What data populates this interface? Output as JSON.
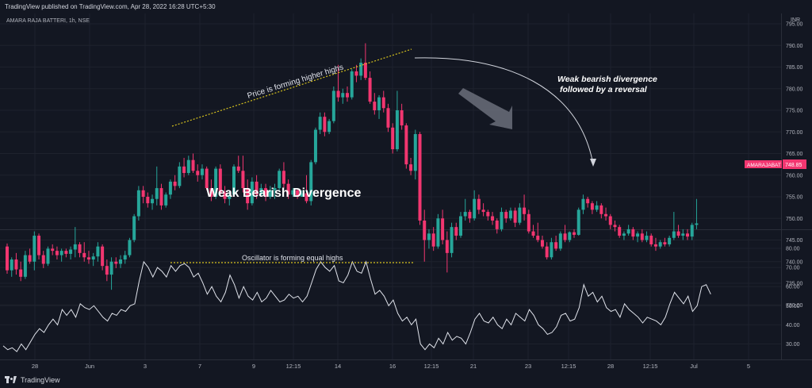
{
  "header": {
    "published": "TradingView published on TradingView.com, Apr 28, 2022 16:28 UTC+5:30"
  },
  "footer": {
    "brand": "TradingView"
  },
  "chart_data": [
    {
      "type": "candlestick",
      "symbol_label": "AMARA RAJA BATTERI, 1h, NSE",
      "currency": "INR",
      "price_badge": {
        "ticker": "AMARAJABAT",
        "price": "748.85"
      },
      "ylim": [
        727,
        797
      ],
      "y_ticks": [
        "795.00",
        "790.00",
        "785.00",
        "780.00",
        "775.00",
        "770.00",
        "765.00",
        "760.00",
        "755.00",
        "750.00",
        "745.00",
        "740.00",
        "735.00",
        "730.00"
      ],
      "annotations": {
        "title": "Weak Bearish Divergence",
        "price_note": "Price is forming higher highs",
        "divergence_note_line1": "Weak bearish divergence",
        "divergence_note_line2": "followed by a reversal"
      },
      "colors": {
        "up": "#26a69a",
        "down": "#f23670",
        "trend": "#d6c21e",
        "background": "#131722"
      },
      "candles": [
        [
          743.5,
          744.2,
          737.2,
          738.0
        ],
        [
          738.0,
          741.0,
          736.5,
          740.5
        ],
        [
          740.5,
          742.0,
          737.0,
          738.2
        ],
        [
          738.2,
          740.0,
          735.5,
          736.5
        ],
        [
          736.5,
          742.5,
          736.0,
          741.5
        ],
        [
          741.5,
          743.0,
          739.5,
          740.0
        ],
        [
          740.0,
          747.0,
          738.0,
          746.0
        ],
        [
          746.0,
          746.5,
          740.5,
          741.5
        ],
        [
          741.5,
          742.5,
          738.5,
          739.5
        ],
        [
          739.5,
          743.5,
          739.0,
          743.0
        ],
        [
          743.0,
          744.0,
          741.5,
          742.5
        ],
        [
          742.5,
          743.5,
          740.5,
          741.5
        ],
        [
          741.5,
          743.0,
          740.0,
          742.5
        ],
        [
          742.5,
          743.0,
          741.0,
          741.8
        ],
        [
          741.8,
          743.5,
          740.5,
          742.8
        ],
        [
          742.8,
          748.0,
          741.0,
          744.0
        ],
        [
          744.0,
          744.5,
          741.0,
          742.0
        ],
        [
          742.0,
          744.5,
          740.0,
          741.0
        ],
        [
          741.0,
          742.5,
          739.5,
          740.5
        ],
        [
          740.5,
          742.0,
          739.0,
          741.2
        ],
        [
          741.2,
          744.5,
          740.0,
          743.5
        ],
        [
          743.5,
          744.0,
          738.0,
          739.0
        ],
        [
          739.0,
          740.5,
          735.5,
          737.0
        ],
        [
          737.0,
          741.0,
          733.5,
          740.0
        ],
        [
          740.0,
          741.0,
          738.5,
          739.5
        ],
        [
          739.5,
          741.5,
          738.5,
          740.5
        ],
        [
          740.5,
          742.5,
          739.5,
          741.5
        ],
        [
          741.5,
          745.5,
          741.0,
          745.0
        ],
        [
          745.0,
          751.0,
          744.5,
          750.5
        ],
        [
          750.5,
          757.5,
          749.5,
          756.5
        ],
        [
          756.5,
          757.5,
          753.5,
          755.0
        ],
        [
          755.0,
          756.0,
          752.5,
          753.5
        ],
        [
          753.5,
          755.5,
          752.0,
          754.5
        ],
        [
          754.5,
          762.0,
          753.0,
          757.0
        ],
        [
          757.0,
          758.0,
          752.0,
          753.0
        ],
        [
          753.0,
          756.0,
          752.5,
          755.5
        ],
        [
          755.5,
          759.0,
          754.5,
          758.5
        ],
        [
          758.5,
          760.0,
          756.5,
          757.5
        ],
        [
          757.5,
          763.0,
          757.0,
          762.0
        ],
        [
          762.0,
          764.0,
          759.5,
          760.5
        ],
        [
          760.5,
          764.5,
          760.0,
          763.5
        ],
        [
          763.5,
          765.0,
          760.5,
          761.0
        ],
        [
          761.0,
          762.5,
          758.5,
          760.0
        ],
        [
          760.0,
          762.5,
          759.0,
          761.5
        ],
        [
          761.5,
          762.0,
          756.5,
          757.0
        ],
        [
          757.0,
          759.0,
          754.0,
          755.0
        ],
        [
          755.0,
          762.0,
          754.5,
          761.5
        ],
        [
          761.5,
          762.5,
          755.0,
          756.0
        ],
        [
          756.0,
          757.5,
          753.5,
          754.5
        ],
        [
          754.5,
          756.5,
          753.0,
          755.5
        ],
        [
          755.5,
          762.5,
          755.0,
          762.0
        ],
        [
          762.0,
          764.5,
          760.5,
          761.0
        ],
        [
          761.0,
          764.5,
          756.0,
          757.0
        ],
        [
          757.0,
          759.0,
          752.0,
          753.5
        ],
        [
          753.5,
          759.5,
          753.0,
          758.5
        ],
        [
          758.5,
          760.0,
          754.5,
          755.5
        ],
        [
          755.5,
          758.0,
          755.0,
          757.0
        ],
        [
          757.0,
          758.0,
          754.0,
          755.0
        ],
        [
          755.0,
          757.5,
          754.5,
          756.5
        ],
        [
          756.5,
          758.0,
          754.5,
          757.0
        ],
        [
          757.0,
          761.5,
          756.5,
          761.0
        ],
        [
          761.0,
          763.0,
          757.0,
          758.0
        ],
        [
          758.0,
          759.0,
          754.5,
          755.5
        ],
        [
          755.5,
          757.0,
          755.0,
          756.5
        ],
        [
          756.5,
          757.0,
          754.5,
          755.0
        ],
        [
          755.0,
          756.5,
          755.0,
          755.8
        ],
        [
          755.8,
          760.0,
          753.5,
          754.0
        ],
        [
          754.0,
          763.5,
          753.0,
          763.0
        ],
        [
          763.0,
          771.0,
          762.5,
          770.5
        ],
        [
          770.5,
          774.5,
          769.5,
          773.5
        ],
        [
          773.5,
          774.5,
          769.0,
          770.0
        ],
        [
          770.0,
          773.0,
          769.5,
          772.5
        ],
        [
          772.5,
          780.5,
          772.0,
          779.5
        ],
        [
          779.5,
          785.5,
          777.0,
          778.0
        ],
        [
          778.0,
          780.0,
          776.5,
          779.0
        ],
        [
          779.0,
          780.5,
          777.0,
          778.0
        ],
        [
          778.0,
          784.5,
          777.5,
          784.0
        ],
        [
          784.0,
          785.5,
          781.5,
          783.0
        ],
        [
          783.0,
          787.0,
          782.0,
          786.0
        ],
        [
          786.0,
          790.5,
          782.0,
          782.5
        ],
        [
          782.5,
          784.0,
          776.5,
          777.0
        ],
        [
          777.0,
          779.0,
          774.0,
          775.0
        ],
        [
          775.0,
          778.5,
          773.0,
          778.0
        ],
        [
          778.0,
          779.5,
          774.5,
          775.5
        ],
        [
          775.5,
          776.5,
          770.0,
          771.0
        ],
        [
          771.0,
          772.0,
          765.0,
          766.0
        ],
        [
          766.0,
          779.5,
          765.5,
          775.0
        ],
        [
          775.0,
          776.5,
          770.5,
          771.5
        ],
        [
          771.5,
          772.0,
          761.5,
          762.5
        ],
        [
          762.5,
          764.0,
          760.0,
          761.0
        ],
        [
          761.0,
          770.5,
          759.0,
          769.5
        ],
        [
          769.5,
          770.0,
          748.5,
          749.5
        ],
        [
          749.5,
          752.0,
          740.0,
          745.0
        ],
        [
          745.0,
          747.5,
          743.0,
          746.5
        ],
        [
          746.5,
          748.0,
          742.5,
          743.5
        ],
        [
          743.5,
          751.0,
          743.0,
          750.0
        ],
        [
          750.0,
          752.0,
          744.0,
          745.0
        ],
        [
          745.0,
          747.0,
          737.5,
          742.0
        ],
        [
          742.0,
          749.0,
          741.0,
          748.0
        ],
        [
          748.0,
          749.0,
          745.0,
          746.0
        ],
        [
          746.0,
          751.5,
          745.5,
          750.5
        ],
        [
          750.5,
          754.5,
          749.5,
          751.5
        ],
        [
          751.5,
          752.0,
          749.0,
          750.0
        ],
        [
          750.0,
          756.5,
          749.5,
          754.5
        ],
        [
          754.5,
          755.5,
          751.0,
          752.0
        ],
        [
          752.0,
          753.5,
          750.5,
          751.5
        ],
        [
          751.5,
          752.0,
          749.5,
          750.5
        ],
        [
          750.5,
          751.5,
          748.5,
          749.5
        ],
        [
          749.5,
          750.0,
          746.5,
          747.5
        ],
        [
          747.5,
          752.5,
          747.0,
          751.5
        ],
        [
          751.5,
          752.0,
          749.0,
          750.0
        ],
        [
          750.0,
          752.5,
          749.5,
          751.8
        ],
        [
          751.8,
          752.5,
          748.0,
          749.0
        ],
        [
          749.0,
          753.5,
          748.5,
          752.5
        ],
        [
          752.5,
          755.5,
          749.5,
          751.0
        ],
        [
          751.0,
          752.0,
          746.5,
          747.0
        ],
        [
          747.0,
          748.5,
          745.5,
          746.0
        ],
        [
          746.0,
          749.0,
          744.5,
          745.0
        ],
        [
          745.0,
          746.0,
          743.0,
          743.5
        ],
        [
          743.5,
          744.5,
          740.5,
          741.0
        ],
        [
          741.0,
          745.5,
          740.5,
          744.5
        ],
        [
          744.5,
          746.0,
          742.5,
          743.0
        ],
        [
          743.0,
          747.0,
          742.5,
          746.5
        ],
        [
          746.5,
          748.5,
          744.5,
          745.0
        ],
        [
          745.0,
          747.0,
          744.5,
          746.8
        ],
        [
          746.8,
          747.5,
          745.5,
          746.2
        ],
        [
          746.2,
          752.5,
          746.0,
          752.0
        ],
        [
          752.0,
          755.5,
          751.0,
          754.5
        ],
        [
          754.5,
          755.0,
          752.5,
          753.5
        ],
        [
          753.5,
          754.0,
          751.0,
          752.0
        ],
        [
          752.0,
          754.0,
          751.5,
          753.0
        ],
        [
          753.0,
          753.5,
          750.0,
          751.0
        ],
        [
          751.0,
          752.5,
          749.5,
          750.5
        ],
        [
          750.5,
          751.0,
          747.5,
          748.5
        ],
        [
          748.5,
          749.5,
          747.0,
          748.0
        ],
        [
          748.0,
          748.5,
          745.5,
          746.0
        ],
        [
          746.0,
          747.0,
          745.0,
          746.5
        ],
        [
          746.5,
          748.5,
          746.0,
          747.5
        ],
        [
          747.5,
          748.0,
          745.0,
          745.8
        ],
        [
          745.8,
          747.0,
          744.5,
          746.5
        ],
        [
          746.5,
          747.5,
          744.5,
          745.0
        ],
        [
          745.0,
          747.0,
          744.5,
          746.0
        ],
        [
          746.0,
          746.5,
          743.5,
          744.0
        ],
        [
          744.0,
          745.5,
          742.5,
          743.5
        ],
        [
          743.5,
          745.0,
          743.0,
          744.5
        ],
        [
          744.5,
          745.5,
          743.5,
          744.0
        ],
        [
          744.0,
          746.0,
          743.5,
          745.5
        ],
        [
          745.5,
          751.5,
          745.0,
          747.0
        ],
        [
          747.0,
          748.5,
          745.5,
          746.0
        ],
        [
          746.0,
          747.5,
          745.0,
          746.5
        ],
        [
          746.5,
          747.5,
          745.0,
          745.8
        ],
        [
          745.8,
          749.0,
          745.0,
          748.5
        ],
        [
          748.5,
          754.5,
          747.5,
          748.85
        ]
      ]
    },
    {
      "type": "line",
      "name": "Oscillator",
      "ylim": [
        24,
        84
      ],
      "y_ticks": [
        "80.00",
        "70.00",
        "60.00",
        "50.00",
        "40.00",
        "30.00"
      ],
      "annotation": "Oscillator is forming equal highs",
      "values": [
        29,
        27,
        28,
        26,
        30,
        27,
        31,
        35,
        38,
        36,
        40,
        43,
        40,
        48,
        45,
        48,
        44,
        51,
        49,
        48,
        50,
        47,
        44,
        42,
        46,
        45,
        48,
        47,
        50,
        51,
        63,
        73,
        70,
        65,
        70,
        68,
        65,
        71,
        68,
        71,
        72,
        70,
        65,
        67,
        62,
        56,
        60,
        55,
        52,
        57,
        66,
        61,
        54,
        60,
        55,
        53,
        57,
        52,
        54,
        58,
        55,
        52,
        53,
        56,
        54,
        55,
        52,
        55,
        62,
        69,
        73,
        70,
        68,
        71,
        63,
        62,
        66,
        73,
        68,
        67,
        73,
        64,
        56,
        58,
        55,
        50,
        53,
        46,
        42,
        44,
        40,
        43,
        30,
        27,
        30,
        28,
        33,
        30,
        36,
        32,
        34,
        33,
        30,
        36,
        43,
        46,
        42,
        41,
        44,
        40,
        38,
        43,
        40,
        46,
        44,
        42,
        48,
        45,
        40,
        38,
        35,
        36,
        39,
        45,
        46,
        42,
        43,
        49,
        61,
        55,
        57,
        52,
        55,
        49,
        47,
        48,
        44,
        51,
        48,
        46,
        44,
        41,
        44,
        43,
        42,
        40,
        44,
        51,
        57,
        54,
        51,
        55,
        47,
        50,
        60,
        61,
        56
      ]
    }
  ],
  "x_axis": {
    "labels": [
      "28",
      "Jun",
      "3",
      "7",
      "9",
      "12:15",
      "14",
      "16",
      "12:15",
      "21",
      "23",
      "12:15",
      "28",
      "12:15",
      "Jul",
      "5"
    ]
  }
}
